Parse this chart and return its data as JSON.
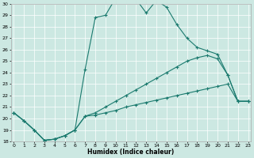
{
  "bg_color": "#cce8e2",
  "line_color": "#1a7a6e",
  "grid_color": "#ffffff",
  "xlabel": "Humidex (Indice chaleur)",
  "xlim_min": 0,
  "xlim_max": 23,
  "ylim_min": 18,
  "ylim_max": 30,
  "xticks": [
    0,
    1,
    2,
    3,
    4,
    5,
    6,
    7,
    8,
    9,
    10,
    11,
    12,
    13,
    14,
    15,
    16,
    17,
    18,
    19,
    20,
    21,
    22,
    23
  ],
  "yticks": [
    18,
    19,
    20,
    21,
    22,
    23,
    24,
    25,
    26,
    27,
    28,
    29,
    30
  ],
  "line1_x": [
    0,
    1,
    2,
    3,
    4,
    5,
    6,
    7,
    8,
    9,
    10,
    11,
    12,
    13,
    14,
    15,
    16,
    17,
    18,
    19,
    20,
    21,
    22,
    23
  ],
  "line1_y": [
    20.5,
    19.8,
    19.0,
    18.1,
    18.2,
    18.5,
    19.0,
    24.3,
    28.8,
    29.0,
    30.5,
    30.4,
    30.4,
    29.2,
    30.3,
    29.7,
    28.2,
    27.0,
    26.2,
    25.9,
    25.6,
    23.8,
    21.5,
    21.5
  ],
  "line2_x": [
    0,
    1,
    2,
    3,
    4,
    5,
    6,
    7,
    8,
    9,
    10,
    11,
    12,
    13,
    14,
    15,
    16,
    17,
    18,
    19,
    20,
    21,
    22,
    23
  ],
  "line2_y": [
    20.5,
    19.8,
    19.0,
    18.1,
    18.2,
    18.5,
    19.0,
    20.2,
    20.5,
    21.0,
    21.5,
    22.0,
    22.5,
    23.0,
    23.5,
    24.0,
    24.5,
    25.0,
    25.3,
    25.5,
    25.2,
    23.8,
    21.5,
    21.5
  ],
  "line3_x": [
    0,
    1,
    2,
    3,
    4,
    5,
    6,
    7,
    8,
    9,
    10,
    11,
    12,
    13,
    14,
    15,
    16,
    17,
    18,
    19,
    20,
    21,
    22,
    23
  ],
  "line3_y": [
    20.5,
    19.8,
    19.0,
    18.1,
    18.2,
    18.5,
    19.0,
    20.2,
    20.3,
    20.5,
    20.7,
    21.0,
    21.2,
    21.4,
    21.6,
    21.8,
    22.0,
    22.2,
    22.4,
    22.6,
    22.8,
    23.0,
    21.5,
    21.5
  ]
}
